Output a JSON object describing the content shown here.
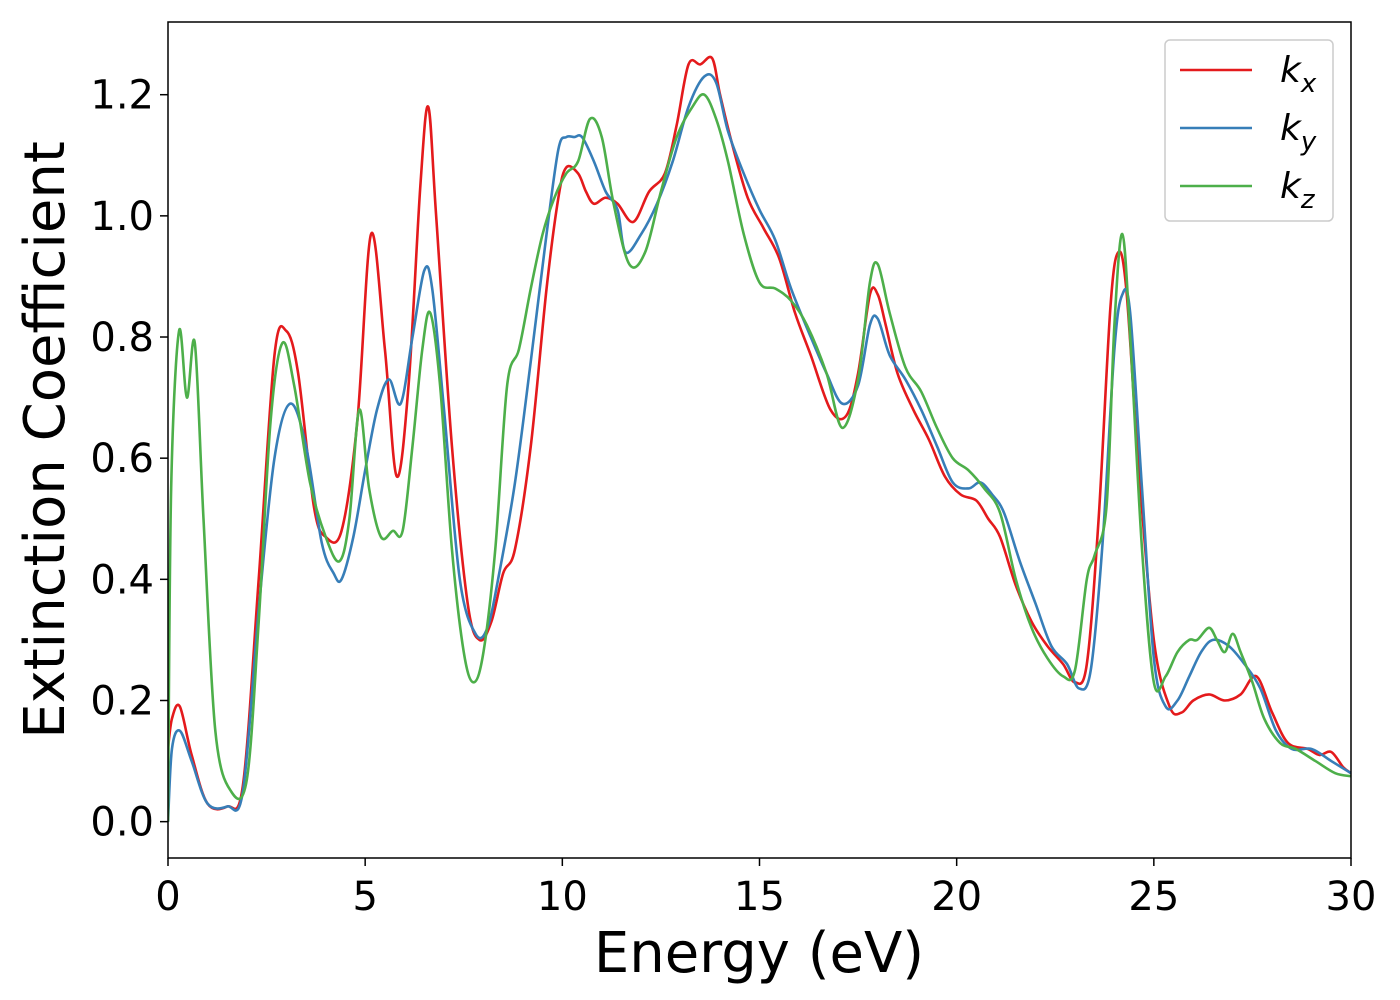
{
  "chart_data": {
    "type": "line",
    "title": "",
    "xlabel": "Energy (eV)",
    "ylabel": "Extinction Coefficient",
    "xlim": [
      0,
      30
    ],
    "ylim": [
      -0.06,
      1.32
    ],
    "xticks": [
      0,
      5,
      10,
      15,
      20,
      25,
      30
    ],
    "xtick_labels": [
      "0",
      "5",
      "10",
      "15",
      "20",
      "25",
      "30"
    ],
    "yticks": [
      0.0,
      0.2,
      0.4,
      0.6,
      0.8,
      1.0,
      1.2
    ],
    "ytick_labels": [
      "0.0",
      "0.2",
      "0.4",
      "0.6",
      "0.8",
      "1.0",
      "1.2"
    ],
    "grid": false,
    "legend_position": "top-right",
    "series": [
      {
        "name": "k_x",
        "label_main": "k",
        "label_sub": "x",
        "color": "#e41a1c",
        "x": [
          0,
          0.1,
          0.3,
          0.6,
          1.0,
          1.5,
          1.9,
          2.3,
          2.7,
          3.0,
          3.3,
          3.7,
          4.0,
          4.4,
          4.8,
          5.15,
          5.5,
          5.8,
          6.1,
          6.4,
          6.6,
          6.8,
          7.2,
          7.6,
          7.9,
          8.2,
          8.5,
          8.8,
          9.2,
          9.6,
          9.9,
          10.1,
          10.4,
          10.6,
          10.8,
          11.1,
          11.4,
          11.8,
          12.2,
          12.6,
          12.9,
          13.2,
          13.5,
          13.8,
          14.0,
          14.3,
          14.7,
          15.1,
          15.5,
          15.9,
          16.3,
          16.8,
          17.2,
          17.5,
          17.8,
          18.0,
          18.2,
          18.5,
          18.9,
          19.3,
          19.7,
          20.1,
          20.5,
          20.8,
          21.1,
          21.5,
          21.9,
          22.3,
          22.7,
          23.0,
          23.3,
          23.6,
          23.9,
          24.1,
          24.3,
          24.6,
          25.0,
          25.4,
          25.7,
          26.0,
          26.4,
          26.8,
          27.2,
          27.6,
          28.0,
          28.4,
          28.9,
          29.2,
          29.5,
          29.8,
          30.0
        ],
        "y": [
          0.12,
          0.17,
          0.19,
          0.11,
          0.03,
          0.025,
          0.06,
          0.4,
          0.77,
          0.81,
          0.74,
          0.52,
          0.47,
          0.48,
          0.66,
          0.97,
          0.78,
          0.57,
          0.72,
          1.05,
          1.18,
          1.0,
          0.62,
          0.36,
          0.3,
          0.33,
          0.41,
          0.45,
          0.62,
          0.88,
          1.03,
          1.08,
          1.07,
          1.04,
          1.02,
          1.03,
          1.02,
          0.99,
          1.04,
          1.07,
          1.15,
          1.25,
          1.25,
          1.26,
          1.2,
          1.12,
          1.03,
          0.98,
          0.93,
          0.84,
          0.77,
          0.68,
          0.67,
          0.74,
          0.87,
          0.87,
          0.82,
          0.74,
          0.68,
          0.63,
          0.57,
          0.54,
          0.53,
          0.5,
          0.47,
          0.39,
          0.33,
          0.29,
          0.26,
          0.23,
          0.26,
          0.5,
          0.85,
          0.94,
          0.88,
          0.6,
          0.3,
          0.19,
          0.18,
          0.2,
          0.21,
          0.2,
          0.21,
          0.24,
          0.18,
          0.13,
          0.12,
          0.11,
          0.115,
          0.09,
          0.08
        ]
      },
      {
        "name": "k_y",
        "label_main": "k",
        "label_sub": "y",
        "color": "#377eb8",
        "x": [
          0,
          0.1,
          0.3,
          0.6,
          1.0,
          1.5,
          1.9,
          2.3,
          2.7,
          3.1,
          3.5,
          3.9,
          4.2,
          4.4,
          4.7,
          5.0,
          5.3,
          5.6,
          5.9,
          6.2,
          6.5,
          6.7,
          7.0,
          7.4,
          7.8,
          8.1,
          8.4,
          8.8,
          9.2,
          9.6,
          9.9,
          10.1,
          10.3,
          10.5,
          10.8,
          11.1,
          11.4,
          11.6,
          12.0,
          12.4,
          12.8,
          13.2,
          13.6,
          13.9,
          14.2,
          14.6,
          15.0,
          15.4,
          15.8,
          16.3,
          16.7,
          17.1,
          17.5,
          17.8,
          18.0,
          18.3,
          18.7,
          19.1,
          19.5,
          19.9,
          20.3,
          20.6,
          20.9,
          21.2,
          21.6,
          22.0,
          22.4,
          22.8,
          23.1,
          23.4,
          23.7,
          24.0,
          24.2,
          24.4,
          24.7,
          25.0,
          25.3,
          25.6,
          25.9,
          26.2,
          26.5,
          26.9,
          27.3,
          27.7,
          28.1,
          28.5,
          29.0,
          29.5,
          30.0
        ],
        "y": [
          0.0,
          0.12,
          0.15,
          0.1,
          0.03,
          0.025,
          0.05,
          0.35,
          0.6,
          0.69,
          0.62,
          0.46,
          0.41,
          0.4,
          0.47,
          0.58,
          0.68,
          0.73,
          0.69,
          0.8,
          0.91,
          0.88,
          0.68,
          0.4,
          0.31,
          0.32,
          0.41,
          0.56,
          0.76,
          0.97,
          1.11,
          1.13,
          1.13,
          1.13,
          1.09,
          1.04,
          1.01,
          0.94,
          0.97,
          1.02,
          1.09,
          1.18,
          1.23,
          1.22,
          1.14,
          1.07,
          1.01,
          0.96,
          0.88,
          0.8,
          0.74,
          0.69,
          0.72,
          0.82,
          0.83,
          0.77,
          0.73,
          0.68,
          0.62,
          0.56,
          0.55,
          0.56,
          0.54,
          0.51,
          0.43,
          0.36,
          0.29,
          0.26,
          0.22,
          0.25,
          0.46,
          0.78,
          0.87,
          0.84,
          0.55,
          0.27,
          0.19,
          0.2,
          0.24,
          0.28,
          0.3,
          0.29,
          0.26,
          0.22,
          0.15,
          0.12,
          0.12,
          0.1,
          0.08
        ]
      },
      {
        "name": "k_z",
        "label_main": "k",
        "label_sub": "z",
        "color": "#4daf4a",
        "x": [
          0,
          0.08,
          0.28,
          0.48,
          0.68,
          0.9,
          1.2,
          1.6,
          2.0,
          2.3,
          2.6,
          2.9,
          3.2,
          3.6,
          4.0,
          4.35,
          4.6,
          4.85,
          5.1,
          5.4,
          5.7,
          5.95,
          6.2,
          6.45,
          6.65,
          6.9,
          7.2,
          7.5,
          7.75,
          8.0,
          8.3,
          8.6,
          8.9,
          9.2,
          9.5,
          9.8,
          10.1,
          10.4,
          10.7,
          11.0,
          11.3,
          11.7,
          12.1,
          12.5,
          12.9,
          13.3,
          13.6,
          13.9,
          14.2,
          14.6,
          15.0,
          15.4,
          15.8,
          16.2,
          16.7,
          17.1,
          17.5,
          17.8,
          18.0,
          18.3,
          18.7,
          19.1,
          19.5,
          19.9,
          20.3,
          20.7,
          21.1,
          21.5,
          21.9,
          22.3,
          22.7,
          23.0,
          23.3,
          23.5,
          23.8,
          24.0,
          24.2,
          24.4,
          24.7,
          25.0,
          25.3,
          25.6,
          25.9,
          26.1,
          26.4,
          26.6,
          26.8,
          27.0,
          27.2,
          27.5,
          27.8,
          28.2,
          28.6,
          29.1,
          29.6,
          30.0
        ],
        "y": [
          0.0,
          0.55,
          0.81,
          0.7,
          0.79,
          0.5,
          0.15,
          0.05,
          0.07,
          0.33,
          0.66,
          0.79,
          0.72,
          0.56,
          0.47,
          0.43,
          0.5,
          0.68,
          0.55,
          0.47,
          0.48,
          0.48,
          0.62,
          0.78,
          0.84,
          0.72,
          0.45,
          0.28,
          0.23,
          0.28,
          0.45,
          0.72,
          0.78,
          0.88,
          0.97,
          1.03,
          1.07,
          1.09,
          1.16,
          1.13,
          1.02,
          0.92,
          0.94,
          1.04,
          1.13,
          1.18,
          1.2,
          1.16,
          1.09,
          0.97,
          0.89,
          0.88,
          0.86,
          0.82,
          0.74,
          0.65,
          0.73,
          0.89,
          0.92,
          0.84,
          0.75,
          0.71,
          0.65,
          0.6,
          0.58,
          0.55,
          0.51,
          0.4,
          0.32,
          0.27,
          0.24,
          0.25,
          0.4,
          0.44,
          0.52,
          0.82,
          0.97,
          0.8,
          0.45,
          0.23,
          0.24,
          0.28,
          0.3,
          0.3,
          0.32,
          0.3,
          0.28,
          0.31,
          0.28,
          0.23,
          0.17,
          0.13,
          0.12,
          0.1,
          0.08,
          0.075
        ]
      }
    ]
  }
}
